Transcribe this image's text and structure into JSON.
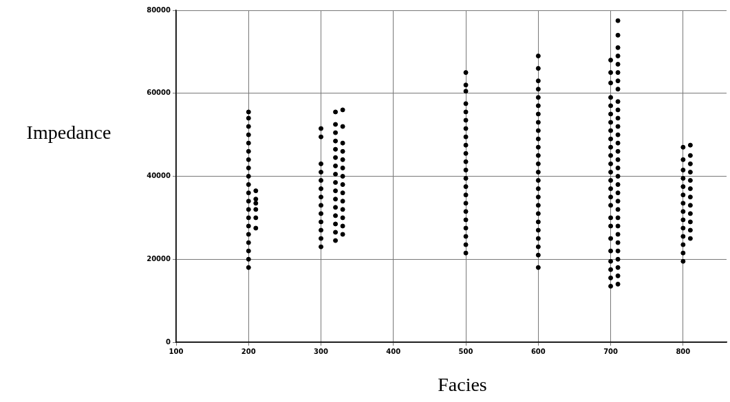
{
  "chart_data": {
    "type": "scatter",
    "xlabel": "Facies",
    "ylabel": "Impedance",
    "xlim": [
      100,
      860
    ],
    "xticks": [
      100,
      200,
      300,
      400,
      500,
      600,
      700,
      800
    ],
    "ylim": [
      0,
      80000
    ],
    "yticks": [
      0,
      20000,
      40000,
      60000,
      80000
    ],
    "grid": true,
    "legend": false,
    "marker": "circle",
    "series": [
      {
        "color": "#000000",
        "x": [
          200,
          200,
          200,
          200,
          200,
          200,
          200,
          200,
          200,
          200,
          200,
          200,
          200,
          200,
          200,
          200,
          200,
          200,
          200,
          200
        ],
        "values": [
          18000,
          20000,
          22000,
          24000,
          26000,
          28000,
          30000,
          32000,
          34000,
          36000,
          38000,
          40000,
          42000,
          44000,
          46000,
          48000,
          50000,
          52000,
          54000,
          55500
        ]
      },
      {
        "color": "#000000",
        "x": [
          210,
          210,
          210,
          210,
          210,
          210
        ],
        "values": [
          27500,
          30000,
          32000,
          33500,
          34500,
          36500
        ]
      },
      {
        "color": "#000000",
        "x": [
          300,
          300,
          300,
          300,
          300,
          300,
          300,
          300,
          300,
          300,
          300,
          300,
          300
        ],
        "values": [
          23000,
          25000,
          27000,
          29000,
          31000,
          33000,
          35000,
          37000,
          39000,
          41000,
          43000,
          49500,
          51500
        ]
      },
      {
        "color": "#000000",
        "x": [
          320,
          320,
          320,
          320,
          320,
          320,
          320,
          320,
          320,
          320,
          320,
          320,
          320,
          320,
          320,
          320
        ],
        "values": [
          24500,
          26500,
          28500,
          30500,
          32500,
          34500,
          36500,
          38500,
          40500,
          42500,
          44500,
          46500,
          48500,
          50500,
          52500,
          55500
        ]
      },
      {
        "color": "#000000",
        "x": [
          330,
          330,
          330,
          330,
          330,
          330,
          330,
          330,
          330,
          330,
          330,
          330,
          330,
          330
        ],
        "values": [
          26000,
          28000,
          30000,
          32000,
          34000,
          36000,
          38000,
          40000,
          42000,
          44000,
          46000,
          48000,
          52000,
          56000
        ]
      },
      {
        "color": "#000000",
        "x": [
          500,
          500,
          500,
          500,
          500,
          500,
          500,
          500,
          500,
          500,
          500,
          500,
          500,
          500,
          500,
          500,
          500,
          500,
          500,
          500,
          500,
          500
        ],
        "values": [
          21500,
          23500,
          25500,
          27500,
          29500,
          31500,
          33500,
          35500,
          37500,
          39500,
          41500,
          43500,
          45500,
          47500,
          49500,
          51500,
          53500,
          55500,
          57500,
          60500,
          62000,
          65000
        ]
      },
      {
        "color": "#000000",
        "x": [
          600,
          600,
          600,
          600,
          600,
          600,
          600,
          600,
          600,
          600,
          600,
          600,
          600,
          600,
          600,
          600,
          600,
          600,
          600,
          600,
          600,
          600,
          600,
          600,
          600
        ],
        "values": [
          18000,
          21000,
          23000,
          25000,
          27000,
          29000,
          31000,
          33000,
          35000,
          37000,
          39000,
          41000,
          43000,
          45000,
          47000,
          49000,
          51000,
          53000,
          55000,
          57000,
          59000,
          61000,
          63000,
          66000,
          69000
        ]
      },
      {
        "color": "#000000",
        "x": [
          700,
          700,
          700,
          700,
          700,
          700,
          700,
          700,
          700,
          700,
          700,
          700,
          700,
          700,
          700,
          700,
          700,
          700,
          700,
          700,
          700,
          700,
          700,
          700,
          700
        ],
        "values": [
          13500,
          15500,
          17500,
          19500,
          22000,
          25000,
          28000,
          30000,
          33000,
          35000,
          37000,
          39000,
          41000,
          43000,
          45000,
          47000,
          49000,
          51000,
          53000,
          55000,
          57000,
          59000,
          62500,
          65000,
          68000
        ]
      },
      {
        "color": "#000000",
        "x": [
          710,
          710,
          710,
          710,
          710,
          710,
          710,
          710,
          710,
          710,
          710,
          710,
          710,
          710,
          710,
          710,
          710,
          710,
          710,
          710,
          710,
          710,
          710,
          710,
          710,
          710,
          710,
          710,
          710,
          710,
          710
        ],
        "values": [
          14000,
          16000,
          18000,
          20000,
          22000,
          24000,
          26000,
          28000,
          30000,
          32000,
          34000,
          36000,
          38000,
          40000,
          42000,
          44000,
          46000,
          48000,
          50000,
          52000,
          54000,
          56000,
          58000,
          61000,
          63000,
          65000,
          67000,
          69000,
          71000,
          74000,
          77500
        ]
      },
      {
        "color": "#000000",
        "x": [
          800,
          800,
          800,
          800,
          800,
          800,
          800,
          800,
          800,
          800,
          800,
          800,
          800,
          800
        ],
        "values": [
          19500,
          21500,
          23500,
          25500,
          27500,
          29500,
          31500,
          33500,
          35500,
          37500,
          39500,
          41500,
          44000,
          47000
        ]
      },
      {
        "color": "#000000",
        "x": [
          810,
          810,
          810,
          810,
          810,
          810,
          810,
          810,
          810,
          810,
          810,
          810
        ],
        "values": [
          25000,
          27000,
          29000,
          31000,
          33000,
          35000,
          37000,
          39000,
          41000,
          43000,
          45000,
          47500
        ]
      }
    ]
  }
}
